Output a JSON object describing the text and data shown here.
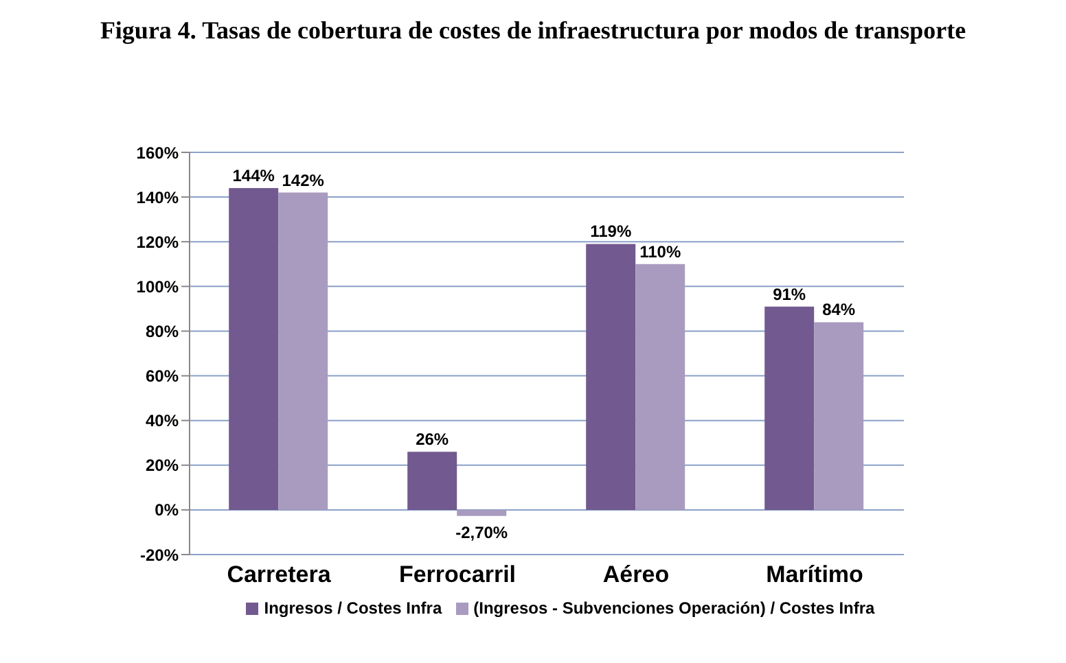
{
  "chart_data": {
    "type": "bar",
    "title": "Figura 4. Tasas de cobertura de costes de infraestructura por modos de transporte",
    "categories": [
      "Carretera",
      "Ferrocarril",
      "Aéreo",
      "Marítimo"
    ],
    "series": [
      {
        "name": "Ingresos / Costes Infra",
        "color": "#72598f",
        "values": [
          144,
          26,
          119,
          91
        ],
        "value_labels": [
          "144%",
          "26%",
          "119%",
          "91%"
        ]
      },
      {
        "name": "(Ingresos - Subvenciones Operación) / Costes Infra",
        "color": "#a99bbf",
        "values": [
          142,
          -2.7,
          110,
          84
        ],
        "value_labels": [
          "142%",
          "-2,70%",
          "110%",
          "84%"
        ]
      }
    ],
    "ylim": [
      -20,
      160
    ],
    "yticks": [
      {
        "value": -20,
        "label": "-20%"
      },
      {
        "value": 0,
        "label": "0%"
      },
      {
        "value": 20,
        "label": "20%"
      },
      {
        "value": 40,
        "label": "40%"
      },
      {
        "value": 60,
        "label": "60%"
      },
      {
        "value": 80,
        "label": "80%"
      },
      {
        "value": 100,
        "label": "100%"
      },
      {
        "value": 120,
        "label": "120%"
      },
      {
        "value": 140,
        "label": "140%"
      },
      {
        "value": 160,
        "label": "160%"
      }
    ],
    "grid": "y",
    "legend": "bottom"
  }
}
